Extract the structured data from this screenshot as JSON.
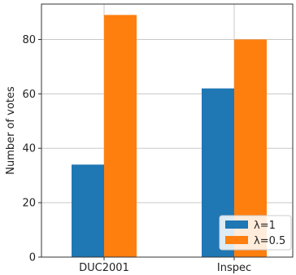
{
  "chart_data": {
    "type": "bar",
    "title": "",
    "xlabel": "",
    "ylabel": "Number of votes",
    "categories": [
      "DUC2001",
      "Inspec"
    ],
    "series": [
      {
        "name": "λ=1",
        "values": [
          34,
          62
        ],
        "color": "#1f77b4"
      },
      {
        "name": "λ=0.5",
        "values": [
          89,
          80
        ],
        "color": "#ff7f0e"
      }
    ],
    "ylim": [
      0,
      93
    ],
    "yticks": [
      0,
      20,
      40,
      60,
      80
    ],
    "grid": true,
    "legend_position": "bottom-right"
  }
}
